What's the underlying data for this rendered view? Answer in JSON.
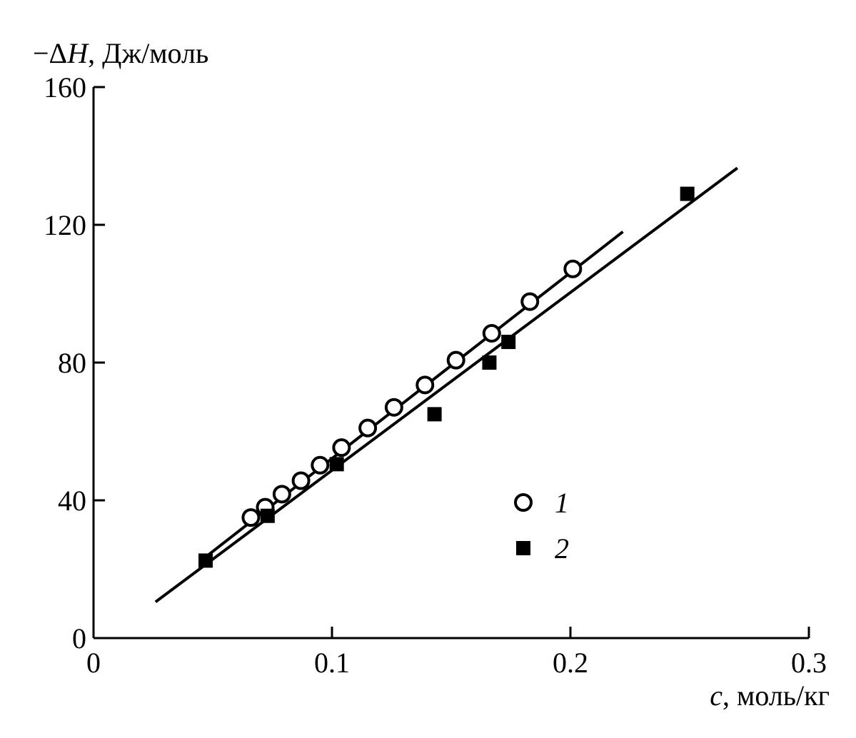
{
  "chart_data": {
    "type": "scatter",
    "ylabel_sign": "−Δ",
    "ylabel_var": "H",
    "ylabel_unit": ", Дж/моль",
    "xlabel_var": "c",
    "xlabel_unit": ", моль/кг",
    "xlim": [
      0,
      0.3
    ],
    "ylim": [
      0,
      160
    ],
    "x_ticks": [
      {
        "value": 0,
        "label": "0"
      },
      {
        "value": 0.1,
        "label": "0.1"
      },
      {
        "value": 0.2,
        "label": "0.2"
      },
      {
        "value": 0.3,
        "label": "0.3"
      }
    ],
    "y_ticks": [
      {
        "value": 0,
        "label": "0"
      },
      {
        "value": 40,
        "label": "40"
      },
      {
        "value": 80,
        "label": "80"
      },
      {
        "value": 120,
        "label": "120"
      },
      {
        "value": 160,
        "label": "160"
      }
    ],
    "grid": false,
    "legend_position": "center-right",
    "series": [
      {
        "name": "1",
        "marker": "open-circle",
        "points": [
          [
            0.066,
            35.0
          ],
          [
            0.072,
            38.0
          ],
          [
            0.079,
            41.8
          ],
          [
            0.087,
            45.7
          ],
          [
            0.095,
            50.2
          ],
          [
            0.104,
            55.3
          ],
          [
            0.115,
            61.0
          ],
          [
            0.126,
            67.0
          ],
          [
            0.139,
            73.5
          ],
          [
            0.152,
            80.7
          ],
          [
            0.167,
            88.5
          ],
          [
            0.183,
            97.7
          ],
          [
            0.201,
            107.2
          ]
        ],
        "fit_line": [
          [
            0.046,
            23.0
          ],
          [
            0.222,
            118.0
          ]
        ]
      },
      {
        "name": "2",
        "marker": "filled-square",
        "points": [
          [
            0.047,
            22.5
          ],
          [
            0.073,
            35.5
          ],
          [
            0.102,
            50.5
          ],
          [
            0.143,
            65.0
          ],
          [
            0.166,
            80.0
          ],
          [
            0.174,
            86.0
          ],
          [
            0.249,
            129.0
          ]
        ],
        "fit_line": [
          [
            0.026,
            10.5
          ],
          [
            0.27,
            136.5
          ]
        ]
      }
    ]
  }
}
